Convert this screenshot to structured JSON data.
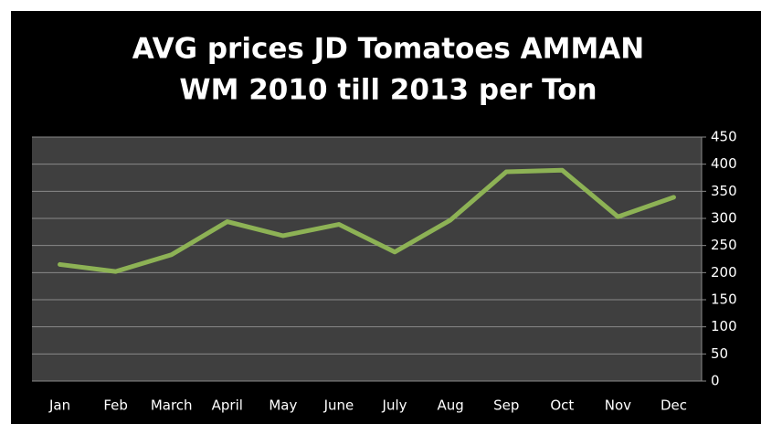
{
  "chart_data": {
    "type": "line",
    "title": [
      "AVG prices  JD Tomatoes AMMAN",
      "WM 2010 till 2013 per Ton"
    ],
    "categories": [
      "Jan",
      "Feb",
      "March",
      "April",
      "May",
      "June",
      "July",
      "Aug",
      "Sep",
      "Oct",
      "Nov",
      "Dec"
    ],
    "values": [
      215,
      202,
      233,
      294,
      268,
      289,
      238,
      297,
      386,
      389,
      303,
      339
    ],
    "color": "#8db255",
    "ylim": [
      0,
      450
    ],
    "yticks": [
      0,
      50,
      100,
      150,
      200,
      250,
      300,
      350,
      400,
      450
    ],
    "grid": true
  }
}
